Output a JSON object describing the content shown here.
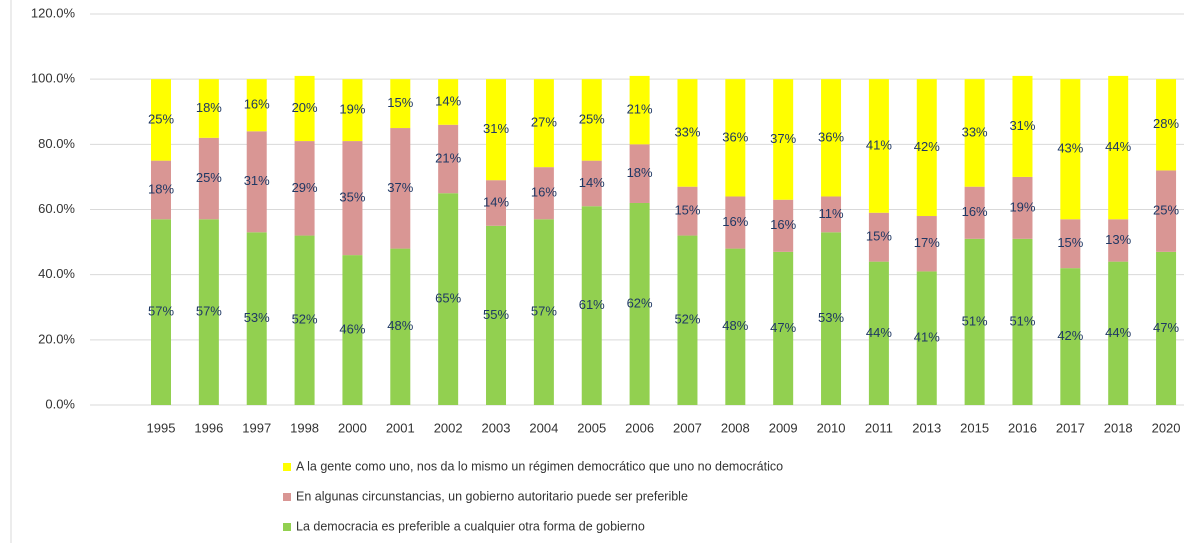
{
  "chart_data": {
    "type": "stacked_bar",
    "categories": [
      "1995",
      "1996",
      "1997",
      "1998",
      "2000",
      "2001",
      "2002",
      "2003",
      "2004",
      "2005",
      "2006",
      "2007",
      "2008",
      "2009",
      "2010",
      "2011",
      "2013",
      "2015",
      "2016",
      "2017",
      "2018",
      "2020"
    ],
    "series": [
      {
        "name": "La democracia es preferible a cualquier otra forma de gobierno",
        "color": "#92d050",
        "values": [
          57,
          57,
          53,
          52,
          46,
          48,
          65,
          55,
          57,
          61,
          62,
          52,
          48,
          47,
          53,
          44,
          41,
          51,
          51,
          42,
          44,
          47
        ],
        "value_labels": [
          "57%",
          "57%",
          "53%",
          "52%",
          "46%",
          "48%",
          "65%",
          "55%",
          "57%",
          "61%",
          "62%",
          "52%",
          "48%",
          "47%",
          "53%",
          "44%",
          "41%",
          "51%",
          "51%",
          "42%",
          "44%",
          "47%"
        ]
      },
      {
        "name": "En algunas circunstancias, un gobierno autoritario puede ser preferible",
        "color": "#d99694",
        "values": [
          18,
          25,
          31,
          29,
          35,
          37,
          21,
          14,
          16,
          14,
          18,
          15,
          16,
          16,
          11,
          15,
          17,
          16,
          19,
          15,
          13,
          25
        ],
        "value_labels": [
          "18%",
          "25%",
          "31%",
          "29%",
          "35%",
          "37%",
          "21%",
          "14%",
          "16%",
          "14%",
          "18%",
          "15%",
          "16%",
          "16%",
          "11%",
          "15%",
          "17%",
          "16%",
          "19%",
          "15%",
          "13%",
          "25%"
        ]
      },
      {
        "name": "A la gente como uno, nos da lo mismo un régimen democrático que uno no democrático",
        "color": "#ffff00",
        "values": [
          25,
          18,
          16,
          20,
          19,
          15,
          14,
          31,
          27,
          25,
          21,
          33,
          36,
          37,
          36,
          41,
          42,
          33,
          31,
          43,
          44,
          28
        ],
        "value_labels": [
          "25%",
          "18%",
          "16%",
          "20%",
          "19%",
          "15%",
          "14%",
          "31%",
          "27%",
          "25%",
          "21%",
          "33%",
          "36%",
          "37%",
          "36%",
          "41%",
          "42%",
          "33%",
          "31%",
          "43%",
          "44%",
          "28%"
        ]
      }
    ],
    "ylim": [
      0,
      120
    ],
    "yticks": [
      {
        "value": 0,
        "label": "0.0%"
      },
      {
        "value": 20,
        "label": "20.0%"
      },
      {
        "value": 40,
        "label": "40.0%"
      },
      {
        "value": 60,
        "label": "60.0%"
      },
      {
        "value": 80,
        "label": "80.0%"
      },
      {
        "value": 100,
        "label": "100.0%"
      },
      {
        "value": 120,
        "label": "120.0%"
      }
    ],
    "grid": true
  }
}
